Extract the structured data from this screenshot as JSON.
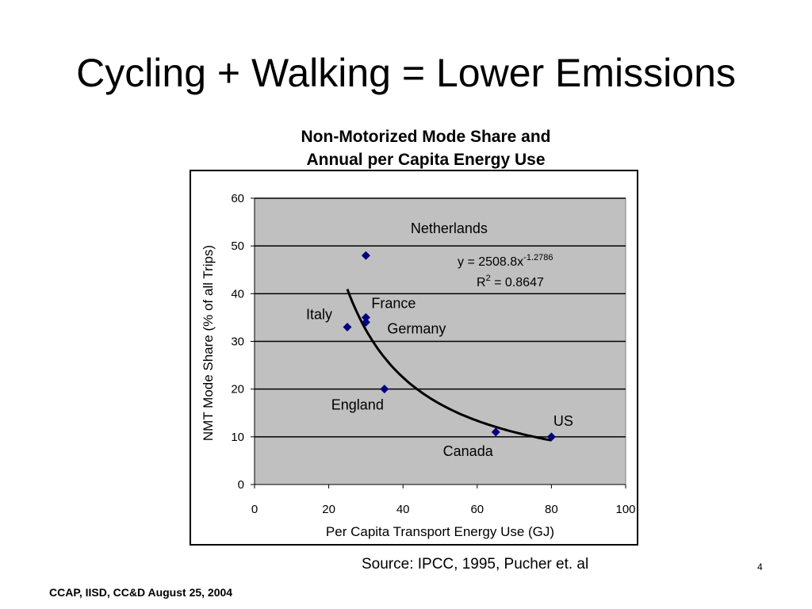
{
  "slide": {
    "title": "Cycling + Walking = Lower Emissions",
    "source": "Source: IPCC, 1995, Pucher et. al",
    "page_number": "4",
    "footer": "CCAP, IISD, CC&D  August 25, 2004"
  },
  "chart_data": {
    "type": "scatter",
    "title_lines": [
      "Non-Motorized Mode Share and",
      "Annual per Capita Energy Use"
    ],
    "xlabel": "Per Capita Transport Energy Use (GJ)",
    "ylabel": "NMT Mode Share (% of all Trips)",
    "xlim": [
      0,
      100
    ],
    "ylim": [
      0,
      60
    ],
    "xticks": [
      0,
      20,
      40,
      60,
      80,
      100
    ],
    "yticks": [
      0,
      10,
      20,
      30,
      40,
      50,
      60
    ],
    "grid": "horizontal",
    "plot_background": "#c0c0c0",
    "marker_color": "#000080",
    "points": [
      {
        "label": "Netherlands",
        "x": 30,
        "y": 48
      },
      {
        "label": "Italy",
        "x": 25,
        "y": 33
      },
      {
        "label": "France",
        "x": 30,
        "y": 35
      },
      {
        "label": "Germany",
        "x": 30,
        "y": 34
      },
      {
        "label": "England",
        "x": 35,
        "y": 20
      },
      {
        "label": "Canada",
        "x": 65,
        "y": 11
      },
      {
        "label": "US",
        "x": 80,
        "y": 10
      }
    ],
    "trendline": {
      "type": "power",
      "a": 2508.8,
      "b": -1.2786,
      "x_range": [
        25,
        80
      ]
    },
    "equation": {
      "text": "y = 2508.8x",
      "exponent": "-1.2786",
      "r_base": "R",
      "r_sup": "2",
      "r_value": " = 0.8647"
    }
  }
}
